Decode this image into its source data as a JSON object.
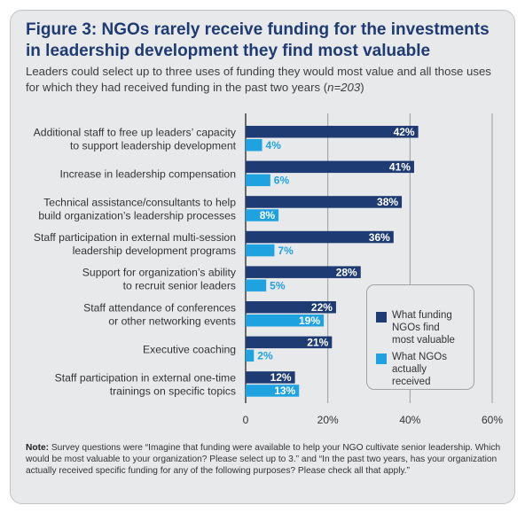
{
  "figure": {
    "title": "Figure 3: NGOs rarely receive funding for the investments in leadership development they find most valuable",
    "subtitle_main": "Leaders could select up to three uses of funding they would most value and all those uses for which they had received funding in the past two years",
    "subtitle_n": "n=203",
    "note_label": "Note:",
    "note_text": "Survey questions were “Imagine that funding were available to help your  NGO cultivate senior leadership. Which would  be most valuable to your organization? Please select up to 3.” and “In the past two years, has your organization actually received specific funding for any of the following purposes? Please check all that apply.”"
  },
  "chart_data": {
    "type": "bar",
    "orientation": "horizontal",
    "categories": [
      [
        "Additional staff to free up leaders’ capacity",
        "to support leadership development"
      ],
      [
        "Increase in leadership compensation"
      ],
      [
        "Technical assistance/consultants to help",
        "build organization’s leadership processes"
      ],
      [
        "Staff participation in external multi-session",
        "leadership development programs"
      ],
      [
        "Support for organization’s ability",
        "to recruit senior leaders"
      ],
      [
        "Staff attendance of conferences",
        "or other networking events"
      ],
      [
        "Executive coaching"
      ],
      [
        "Staff participation in external one-time",
        "trainings on specific topics"
      ]
    ],
    "series": [
      {
        "name": "What funding NGOs find most valuable",
        "legend_lines": [
          "What funding",
          "NGOs find",
          "most valuable"
        ],
        "color": "#1f3b73",
        "values": [
          42,
          41,
          38,
          36,
          28,
          22,
          21,
          12
        ]
      },
      {
        "name": "What NGOs actually received",
        "legend_lines": [
          "What NGOs",
          "actually",
          "received"
        ],
        "color": "#1fa3e0",
        "values": [
          4,
          6,
          8,
          7,
          5,
          19,
          2,
          13
        ]
      }
    ],
    "xlim": [
      0,
      60
    ],
    "xticks": [
      0,
      20,
      40,
      60
    ],
    "tick_labels": [
      "0",
      "20%",
      "40%",
      "60%"
    ],
    "value_suffix": "%",
    "grid": true,
    "legend_position": "right"
  }
}
